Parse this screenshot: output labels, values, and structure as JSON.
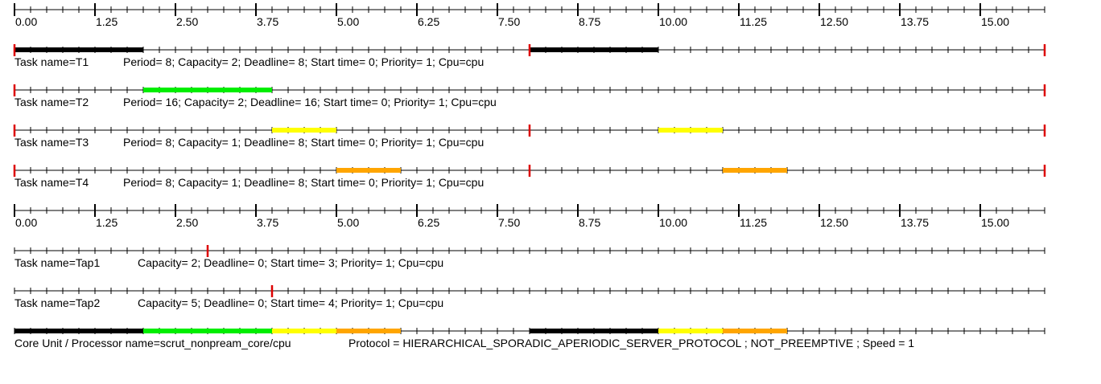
{
  "chart_data": {
    "type": "timeline",
    "axis": {
      "range": [
        0,
        16
      ],
      "tick_labels": [
        "0.00",
        "1.25",
        "2.50",
        "3.75",
        "5.00",
        "6.25",
        "7.50",
        "8.75",
        "10.00",
        "11.25",
        "12.50",
        "13.75",
        "15.00"
      ],
      "label_values": [
        0,
        1.25,
        2.5,
        3.75,
        5,
        6.25,
        7.5,
        8.75,
        10,
        11.25,
        12.5,
        13.75,
        15
      ]
    },
    "colors": {
      "T1": "#000000",
      "T2": "#00ee00",
      "T3": "#ffff00",
      "T4": "#ffa500",
      "marker": "#dd0000"
    },
    "tasks": [
      {
        "name_text": "Task name=T1",
        "params_text": "Period= 8; Capacity= 2; Deadline= 8; Start time= 0; Priority= 1; Cpu=cpu",
        "color": "#000000",
        "release_marks": [
          0,
          8,
          16
        ],
        "execution": [
          [
            0,
            2
          ],
          [
            8,
            10
          ]
        ]
      },
      {
        "name_text": "Task name=T2",
        "params_text": "Period= 16; Capacity= 2; Deadline= 16; Start time= 0; Priority= 1; Cpu=cpu",
        "color": "#00ee00",
        "release_marks": [
          0,
          16
        ],
        "execution": [
          [
            2,
            4
          ]
        ]
      },
      {
        "name_text": "Task name=T3",
        "params_text": "Period= 8; Capacity= 1; Deadline= 8; Start time= 0; Priority= 1; Cpu=cpu",
        "color": "#ffff00",
        "release_marks": [
          0,
          8,
          16
        ],
        "execution": [
          [
            4,
            5
          ],
          [
            10,
            11
          ]
        ]
      },
      {
        "name_text": "Task name=T4",
        "params_text": "Period= 8; Capacity= 1; Deadline= 8; Start time= 0; Priority= 1; Cpu=cpu",
        "color": "#ffa500",
        "release_marks": [
          0,
          8,
          16
        ],
        "execution": [
          [
            5,
            6
          ],
          [
            11,
            12
          ]
        ]
      }
    ],
    "aperiodic_tasks": [
      {
        "name_text": "Task name=Tap1",
        "params_text": "Capacity= 2; Deadline= 0; Start time= 3; Priority= 1; Cpu=cpu",
        "release_marks": [
          3
        ]
      },
      {
        "name_text": "Task name=Tap2",
        "params_text": "Capacity= 5; Deadline= 0; Start time= 4; Priority= 1; Cpu=cpu",
        "release_marks": [
          4
        ]
      }
    ],
    "processor": {
      "name_text": "Core Unit / Processor name=scrut_nonpream_core/cpu",
      "params_text": "Protocol = HIERARCHICAL_SPORADIC_APERIODIC_SERVER_PROTOCOL ; NOT_PREEMPTIVE ; Speed =  1",
      "execution": [
        {
          "span": [
            0,
            2
          ],
          "color": "#000000"
        },
        {
          "span": [
            2,
            4
          ],
          "color": "#00ee00"
        },
        {
          "span": [
            4,
            5
          ],
          "color": "#ffff00"
        },
        {
          "span": [
            5,
            6
          ],
          "color": "#ffa500"
        },
        {
          "span": [
            8,
            10
          ],
          "color": "#000000"
        },
        {
          "span": [
            10,
            11
          ],
          "color": "#ffff00"
        },
        {
          "span": [
            11,
            12
          ],
          "color": "#ffa500"
        }
      ]
    }
  }
}
